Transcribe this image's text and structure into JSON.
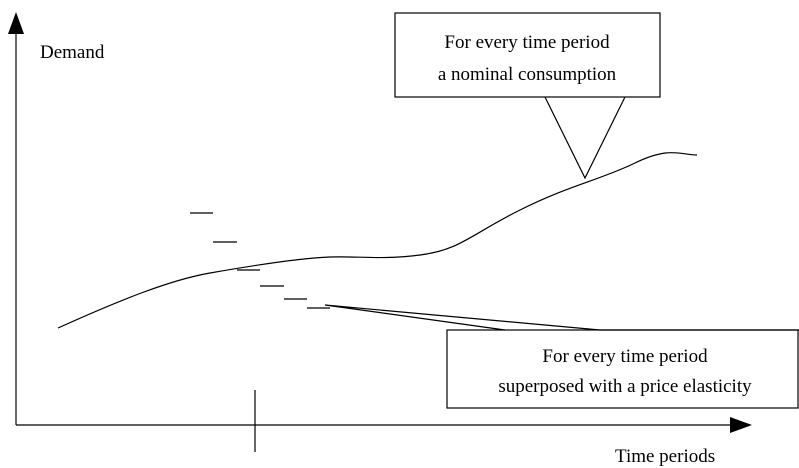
{
  "axes": {
    "y_label": "Demand",
    "x_label": "Time periods"
  },
  "callouts": [
    {
      "lines": [
        "For every time period",
        "a nominal consumption"
      ]
    },
    {
      "lines": [
        "For every time period",
        "superposed with a price elasticity"
      ]
    }
  ]
}
